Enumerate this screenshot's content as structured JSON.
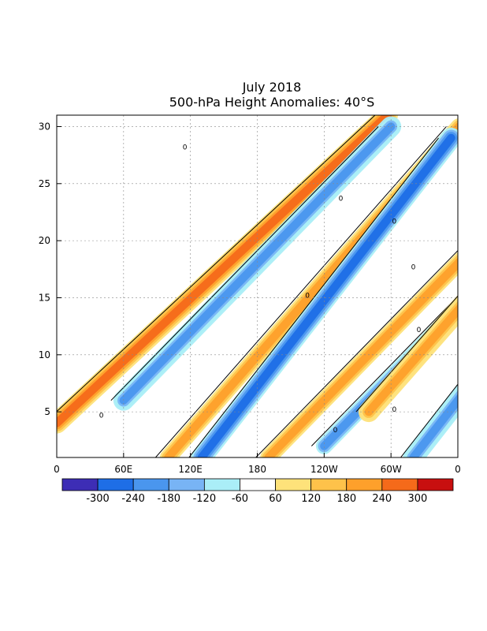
{
  "chart_data": {
    "type": "heatmap",
    "title": "July 2018",
    "subtitle": "500-hPa Height Anomalies: 40°S",
    "xlabel": "",
    "ylabel": "",
    "x_ticks": [
      "0",
      "60E",
      "120E",
      "180",
      "120W",
      "60W",
      "0"
    ],
    "x_tick_values": [
      0,
      60,
      120,
      180,
      240,
      300,
      360
    ],
    "y_ticks": [
      "5",
      "10",
      "15",
      "20",
      "25",
      "30"
    ],
    "y_tick_values": [
      5,
      10,
      15,
      20,
      25,
      30
    ],
    "xlim": [
      0,
      360
    ],
    "ylim": [
      31,
      1
    ],
    "grid": true,
    "contour_label": "0",
    "legend": {
      "placement": "bottom",
      "labels": [
        "-300",
        "-240",
        "-180",
        "-120",
        "-60",
        "60",
        "120",
        "180",
        "240",
        "300"
      ],
      "colors": [
        "#3d2db5",
        "#1e6ee6",
        "#4a96ee",
        "#78b4f5",
        "#aaeef7",
        "#ffffff",
        "#fee27a",
        "#fec24a",
        "#fea02b",
        "#f56a1a",
        "#c80f0f"
      ]
    },
    "anomaly_bands": [
      {
        "sign": "positive",
        "lon_start": 0,
        "day_start": 4,
        "day_end": 31,
        "slope": 11,
        "amplitude": 250
      },
      {
        "sign": "negative",
        "lon_start": 60,
        "day_start": 6,
        "day_end": 30,
        "slope": 10,
        "amplitude": -200
      },
      {
        "sign": "positive",
        "lon_start": 100,
        "day_start": 1,
        "day_end": 30,
        "slope": 9,
        "amplitude": 180
      },
      {
        "sign": "negative",
        "lon_start": 130,
        "day_start": 1,
        "day_end": 29,
        "slope": 8,
        "amplitude": -280
      },
      {
        "sign": "positive",
        "lon_start": 190,
        "day_start": 1,
        "day_end": 31,
        "slope": 10,
        "amplitude": 180
      },
      {
        "sign": "negative",
        "lon_start": 240,
        "day_start": 2,
        "day_end": 28,
        "slope": 10,
        "amplitude": -180
      },
      {
        "sign": "positive",
        "lon_start": 280,
        "day_start": 5,
        "day_end": 31,
        "slope": 9,
        "amplitude": 200
      },
      {
        "sign": "negative",
        "lon_start": 320,
        "day_start": 1,
        "day_end": 31,
        "slope": 8,
        "amplitude": -200
      }
    ]
  }
}
